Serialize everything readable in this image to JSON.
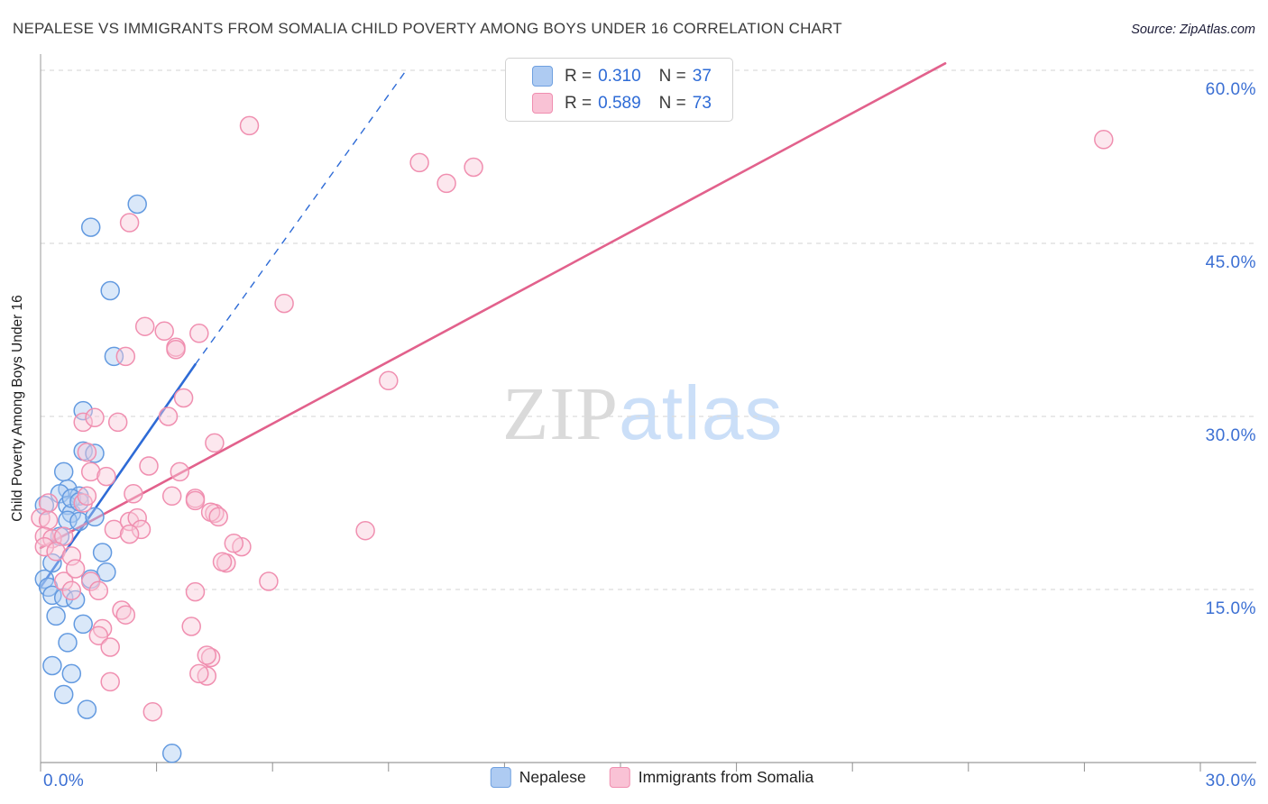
{
  "title": "NEPALESE VS IMMIGRANTS FROM SOMALIA CHILD POVERTY AMONG BOYS UNDER 16 CORRELATION CHART",
  "source": "Source: ZipAtlas.com",
  "watermark": {
    "zip": "ZIP",
    "atlas": "atlas"
  },
  "legend_box": {
    "rows": [
      {
        "series": "Nepalese",
        "r_label": "R =",
        "r_value": "0.310",
        "n_label": "N =",
        "n_value": "37"
      },
      {
        "series": "Immigrants from Somalia",
        "r_label": "R =",
        "r_value": "0.589",
        "n_label": "N =",
        "n_value": "73"
      }
    ]
  },
  "bottom_legend": [
    {
      "label": "Nepalese"
    },
    {
      "label": "Immigrants from Somalia"
    }
  ],
  "colors": {
    "blue_fill": "#AECBF2",
    "blue_stroke": "#639AE0",
    "pink_fill": "#F9C9D9",
    "pink_stroke": "#F08FB0",
    "blue_trend": "#2E6BD6",
    "pink_trend": "#E2618C",
    "axis_label": "#3B6FD3",
    "grid": "#DCDCDC",
    "axis_line": "#9a9a9a",
    "title_text": "#3C3C3C",
    "watermark_zip": "#DADADA",
    "watermark_atlas": "#CBDFF8"
  },
  "chart_data": {
    "type": "scatter",
    "title": "Nepalese vs Immigrants from Somalia Child Poverty Among Boys Under 16",
    "x_axis": {
      "min": 0,
      "max": 30,
      "tick_step": 3,
      "unit": "%",
      "label_min": "0.0%",
      "label_max": "30.0%"
    },
    "y_axis": {
      "min": 0,
      "max": 60,
      "unit": "%",
      "title": "Child Poverty Among Boys Under 16",
      "gridlines": [
        {
          "value": 60,
          "label": "60.0%"
        },
        {
          "value": 45,
          "label": "45.0%"
        },
        {
          "value": 30,
          "label": "30.0%"
        },
        {
          "value": 15,
          "label": "15.0%"
        }
      ]
    },
    "series": [
      {
        "name": "Nepalese",
        "R": 0.31,
        "N": 37,
        "points": [
          [
            1.3,
            46.4
          ],
          [
            2.5,
            48.4
          ],
          [
            1.8,
            40.9
          ],
          [
            1.9,
            35.2
          ],
          [
            1.1,
            30.5
          ],
          [
            1.1,
            27.0
          ],
          [
            1.4,
            26.8
          ],
          [
            0.6,
            25.2
          ],
          [
            0.7,
            23.7
          ],
          [
            0.5,
            23.3
          ],
          [
            1.0,
            23.1
          ],
          [
            0.1,
            22.3
          ],
          [
            0.7,
            22.3
          ],
          [
            0.8,
            21.6
          ],
          [
            0.7,
            21.0
          ],
          [
            1.0,
            20.9
          ],
          [
            0.8,
            22.9
          ],
          [
            1.0,
            22.6
          ],
          [
            1.6,
            18.2
          ],
          [
            0.1,
            15.9
          ],
          [
            0.2,
            15.2
          ],
          [
            0.3,
            14.5
          ],
          [
            0.6,
            14.3
          ],
          [
            0.9,
            14.1
          ],
          [
            1.3,
            15.9
          ],
          [
            0.4,
            12.7
          ],
          [
            0.7,
            10.4
          ],
          [
            0.3,
            8.4
          ],
          [
            0.8,
            7.7
          ],
          [
            0.6,
            5.9
          ],
          [
            1.2,
            4.6
          ],
          [
            3.4,
            0.8
          ],
          [
            0.5,
            19.6
          ],
          [
            1.4,
            21.3
          ],
          [
            0.3,
            17.3
          ],
          [
            1.7,
            16.5
          ],
          [
            1.1,
            12.0
          ]
        ]
      },
      {
        "name": "Immigrants from Somalia",
        "R": 0.589,
        "N": 73,
        "points": [
          [
            5.4,
            55.2
          ],
          [
            14.0,
            58.0
          ],
          [
            27.5,
            54.0
          ],
          [
            9.8,
            52.0
          ],
          [
            11.2,
            51.6
          ],
          [
            10.5,
            50.2
          ],
          [
            2.3,
            46.8
          ],
          [
            6.3,
            39.8
          ],
          [
            2.7,
            37.8
          ],
          [
            3.2,
            37.4
          ],
          [
            3.5,
            36.0
          ],
          [
            4.1,
            37.2
          ],
          [
            2.2,
            35.2
          ],
          [
            3.5,
            35.8
          ],
          [
            9.0,
            33.1
          ],
          [
            1.1,
            29.5
          ],
          [
            1.4,
            29.9
          ],
          [
            2.0,
            29.5
          ],
          [
            3.7,
            31.6
          ],
          [
            3.3,
            30.0
          ],
          [
            1.2,
            26.9
          ],
          [
            1.3,
            25.2
          ],
          [
            1.7,
            24.8
          ],
          [
            2.8,
            25.7
          ],
          [
            3.6,
            25.2
          ],
          [
            4.5,
            27.7
          ],
          [
            2.4,
            23.3
          ],
          [
            3.4,
            23.1
          ],
          [
            4.0,
            22.9
          ],
          [
            0.2,
            22.5
          ],
          [
            0.0,
            21.2
          ],
          [
            0.2,
            21.0
          ],
          [
            1.1,
            22.5
          ],
          [
            1.2,
            23.1
          ],
          [
            0.1,
            19.6
          ],
          [
            0.3,
            19.4
          ],
          [
            0.6,
            19.6
          ],
          [
            0.1,
            18.7
          ],
          [
            0.4,
            18.3
          ],
          [
            0.8,
            17.9
          ],
          [
            1.9,
            20.2
          ],
          [
            2.3,
            20.9
          ],
          [
            2.5,
            21.2
          ],
          [
            2.6,
            20.2
          ],
          [
            2.3,
            19.8
          ],
          [
            4.5,
            21.6
          ],
          [
            4.8,
            17.3
          ],
          [
            5.2,
            18.7
          ],
          [
            5.9,
            15.7
          ],
          [
            8.4,
            20.1
          ],
          [
            0.6,
            15.7
          ],
          [
            0.8,
            14.9
          ],
          [
            1.3,
            15.7
          ],
          [
            1.5,
            14.9
          ],
          [
            2.1,
            13.2
          ],
          [
            2.2,
            12.8
          ],
          [
            1.6,
            11.6
          ],
          [
            1.5,
            11.0
          ],
          [
            1.8,
            10.0
          ],
          [
            1.8,
            7.0
          ],
          [
            4.4,
            9.1
          ],
          [
            4.3,
            7.5
          ],
          [
            2.9,
            4.4
          ],
          [
            4.0,
            22.7
          ],
          [
            4.4,
            21.7
          ],
          [
            4.6,
            21.3
          ],
          [
            5.0,
            19.0
          ],
          [
            4.7,
            17.4
          ],
          [
            4.0,
            14.8
          ],
          [
            3.9,
            11.8
          ],
          [
            4.3,
            9.3
          ],
          [
            4.1,
            7.7
          ],
          [
            0.9,
            16.8
          ]
        ]
      }
    ],
    "trend_lines": [
      {
        "series": "Nepalese",
        "solid": [
          [
            0,
            15.2
          ],
          [
            4.0,
            34.5
          ]
        ],
        "dashed": [
          [
            4.0,
            34.5
          ],
          [
            9.5,
            60.2
          ]
        ]
      },
      {
        "series": "Immigrants from Somalia",
        "solid": [
          [
            0,
            18.6
          ],
          [
            23.4,
            60.6
          ]
        ]
      }
    ],
    "legend_position": "top-center",
    "grid": "horizontal-dashed"
  }
}
